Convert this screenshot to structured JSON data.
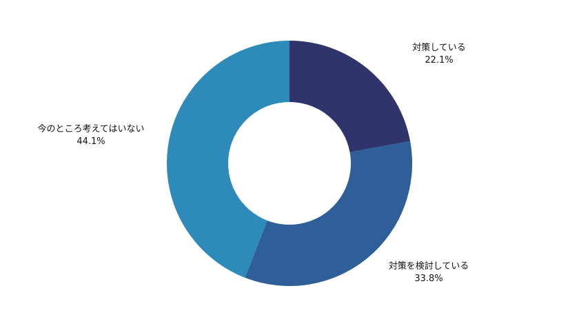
{
  "chart_data": {
    "type": "pie",
    "subtype": "donut",
    "legend": "none",
    "slices": [
      {
        "label": "対策している",
        "value": 22.1,
        "value_label": "22.1%",
        "color": "#30346d"
      },
      {
        "label": "対策を検討している",
        "value": 33.8,
        "value_label": "33.8%",
        "color": "#2e5f98"
      },
      {
        "label": "今のところ考えてはいない",
        "value": 44.1,
        "value_label": "44.1%",
        "color": "#2e8ab8"
      }
    ]
  }
}
